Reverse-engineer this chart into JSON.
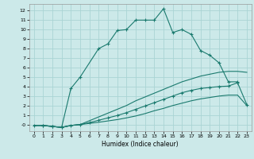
{
  "xlabel": "Humidex (Indice chaleur)",
  "bg_color": "#cce9e9",
  "grid_color": "#aad4d4",
  "line_color": "#1a7a6e",
  "xlim": [
    -0.5,
    23.5
  ],
  "ylim": [
    -0.7,
    12.7
  ],
  "yticks": [
    0,
    1,
    2,
    3,
    4,
    5,
    6,
    7,
    8,
    9,
    10,
    11,
    12
  ],
  "xticks": [
    0,
    1,
    2,
    3,
    4,
    5,
    6,
    7,
    8,
    9,
    10,
    11,
    12,
    13,
    14,
    15,
    16,
    17,
    18,
    19,
    20,
    21,
    22,
    23
  ],
  "lines": [
    {
      "x": [
        0,
        1,
        2,
        3,
        4,
        5,
        6,
        7,
        8,
        9,
        10,
        11,
        12,
        13,
        14,
        15,
        16,
        17,
        18,
        19,
        20,
        21,
        22,
        23
      ],
      "y": [
        -0.1,
        -0.1,
        -0.2,
        -0.3,
        -0.1,
        0.0,
        0.4,
        0.8,
        1.2,
        1.6,
        2.0,
        2.5,
        2.9,
        3.3,
        3.7,
        4.1,
        4.5,
        4.8,
        5.1,
        5.3,
        5.5,
        5.6,
        5.6,
        5.5
      ],
      "has_markers": false
    },
    {
      "x": [
        0,
        1,
        2,
        3,
        4,
        5,
        6,
        7,
        8,
        9,
        10,
        11,
        12,
        13,
        14,
        15,
        16,
        17,
        18,
        19,
        20,
        21,
        22,
        23
      ],
      "y": [
        -0.1,
        -0.1,
        -0.2,
        -0.3,
        -0.1,
        0.0,
        0.2,
        0.45,
        0.7,
        0.95,
        1.25,
        1.6,
        1.95,
        2.3,
        2.65,
        3.0,
        3.35,
        3.6,
        3.8,
        3.9,
        4.0,
        4.05,
        4.4,
        2.1
      ],
      "has_markers": true
    },
    {
      "x": [
        0,
        1,
        2,
        3,
        4,
        5,
        6,
        7,
        8,
        9,
        10,
        11,
        12,
        13,
        14,
        15,
        16,
        17,
        18,
        19,
        20,
        21,
        22,
        23
      ],
      "y": [
        -0.1,
        -0.1,
        -0.2,
        -0.3,
        -0.1,
        0.0,
        0.12,
        0.24,
        0.38,
        0.52,
        0.7,
        0.9,
        1.15,
        1.45,
        1.7,
        2.0,
        2.25,
        2.5,
        2.7,
        2.85,
        3.0,
        3.1,
        3.1,
        2.0
      ],
      "has_markers": false
    },
    {
      "x": [
        1,
        2,
        3,
        4,
        5,
        7,
        8,
        9,
        10,
        11,
        12,
        13,
        14,
        15,
        16,
        17,
        18,
        19,
        20,
        21,
        22
      ],
      "y": [
        -0.1,
        -0.2,
        -0.3,
        3.8,
        5.0,
        8.0,
        8.5,
        9.9,
        10.0,
        11.0,
        11.0,
        11.0,
        12.2,
        9.7,
        10.0,
        9.5,
        7.8,
        7.3,
        6.5,
        4.5,
        4.5
      ],
      "has_markers": true
    }
  ]
}
